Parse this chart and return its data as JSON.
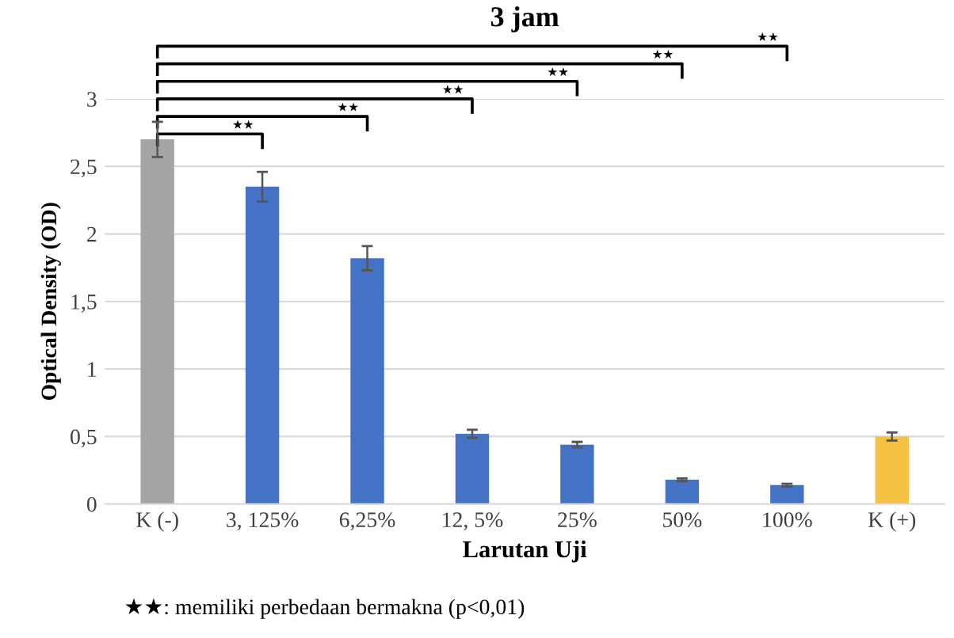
{
  "chart_data": {
    "type": "bar",
    "title": "3 jam",
    "xlabel": "Larutan Uji",
    "ylabel": "Optical Density (OD)",
    "categories": [
      "K (-)",
      "3, 125%",
      "6,25%",
      "12, 5%",
      "25%",
      "50%",
      "100%",
      "K (+)"
    ],
    "values": [
      2.7,
      2.35,
      1.82,
      0.52,
      0.44,
      0.18,
      0.14,
      0.5
    ],
    "errors": [
      0.13,
      0.11,
      0.09,
      0.03,
      0.02,
      0.01,
      0.01,
      0.03
    ],
    "colors": [
      "#a5a5a5",
      "#4472c4",
      "#4472c4",
      "#4472c4",
      "#4472c4",
      "#4472c4",
      "#4472c4",
      "#f4c242"
    ],
    "ylim": [
      0,
      3
    ],
    "yticks": [
      0,
      {
        "value": 0.5,
        "label": "0,5"
      },
      1,
      {
        "value": 1.5,
        "label": "1,5"
      },
      2,
      {
        "value": 2.5,
        "label": "2,5"
      },
      3
    ],
    "grid": "y",
    "legend": false,
    "annotations": [
      "★★",
      "★★",
      "★★",
      "★★",
      "★★",
      "★★",
      "★★: memiliki perbedaan bermakna (p<0,01)"
    ]
  }
}
